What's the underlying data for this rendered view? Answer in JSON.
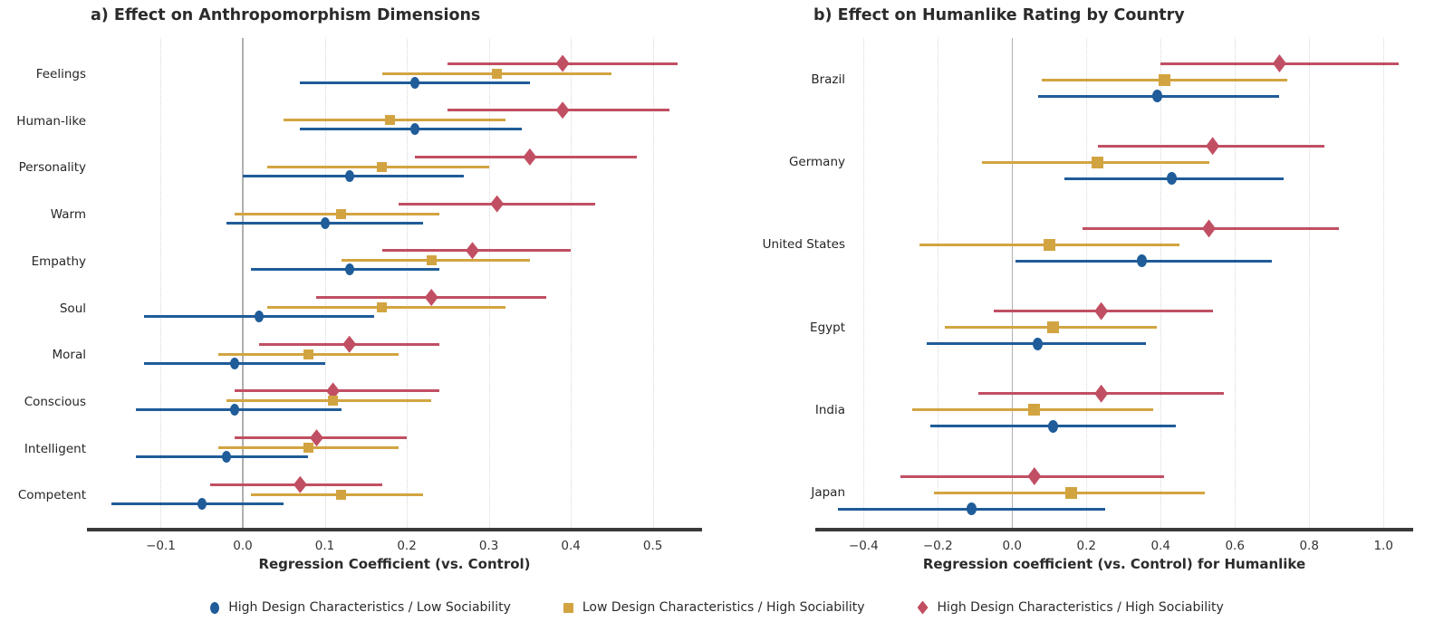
{
  "colors": {
    "blue": "#1f5c99",
    "gold": "#d2a441",
    "red": "#c14f63",
    "grid": "#d8d8d8",
    "zero_line": "#b0b0b0",
    "spine": "#3a3a3a",
    "title_text": "#2b2b2b",
    "tick_text": "#333333"
  },
  "legend": {
    "items": [
      {
        "label": "High Design Characteristics / Low Sociability",
        "marker": "circle",
        "color": "blue"
      },
      {
        "label": "Low Design Characteristics / High Sociability",
        "marker": "square",
        "color": "gold"
      },
      {
        "label": "High Design Characteristics / High Sociability",
        "marker": "diamond",
        "color": "red"
      }
    ]
  },
  "chart_data": [
    {
      "type": "scatter",
      "variant": "dot-whisker-forest-plot",
      "title": "a) Effect on Anthropomorphism Dimensions",
      "xlabel": "Regression Coefficient (vs. Control)",
      "ylabel": "",
      "xlim": [
        -0.19,
        0.56
      ],
      "xticks": [
        -0.1,
        0.0,
        0.1,
        0.2,
        0.3,
        0.4,
        0.5
      ],
      "grid": "vertical-dotted",
      "zero_reference_line": true,
      "legend_position": "bottom",
      "categories": [
        "Feelings",
        "Human-like",
        "Personality",
        "Warm",
        "Empathy",
        "Soul",
        "Moral",
        "Conscious",
        "Intelligent",
        "Competent"
      ],
      "series": [
        {
          "name": "High Design Characteristics / High Sociability",
          "marker": "diamond",
          "color": "red",
          "values": [
            0.39,
            0.39,
            0.35,
            0.31,
            0.28,
            0.23,
            0.13,
            0.11,
            0.09,
            0.07
          ],
          "ci_low": [
            0.25,
            0.25,
            0.21,
            0.19,
            0.17,
            0.09,
            0.02,
            -0.01,
            -0.01,
            -0.04
          ],
          "ci_high": [
            0.53,
            0.52,
            0.48,
            0.43,
            0.4,
            0.37,
            0.24,
            0.24,
            0.2,
            0.17
          ]
        },
        {
          "name": "Low Design Characteristics / High Sociability",
          "marker": "square",
          "color": "gold",
          "values": [
            0.31,
            0.18,
            0.17,
            0.12,
            0.23,
            0.17,
            0.08,
            0.11,
            0.08,
            0.12
          ],
          "ci_low": [
            0.17,
            0.05,
            0.03,
            -0.01,
            0.12,
            0.03,
            -0.03,
            -0.02,
            -0.03,
            0.01
          ],
          "ci_high": [
            0.45,
            0.32,
            0.3,
            0.24,
            0.35,
            0.32,
            0.19,
            0.23,
            0.19,
            0.22
          ]
        },
        {
          "name": "High Design Characteristics / Low Sociability",
          "marker": "circle",
          "color": "blue",
          "values": [
            0.21,
            0.21,
            0.13,
            0.1,
            0.13,
            0.02,
            -0.01,
            -0.01,
            -0.02,
            -0.05
          ],
          "ci_low": [
            0.07,
            0.07,
            0.0,
            -0.02,
            0.01,
            -0.12,
            -0.12,
            -0.13,
            -0.13,
            -0.16
          ],
          "ci_high": [
            0.35,
            0.34,
            0.27,
            0.22,
            0.24,
            0.16,
            0.1,
            0.12,
            0.08,
            0.05
          ]
        }
      ]
    },
    {
      "type": "scatter",
      "variant": "dot-whisker-forest-plot",
      "title": "b) Effect on Humanlike Rating by Country",
      "xlabel": "Regression coefficient (vs. Control) for Humanlike",
      "ylabel": "",
      "xlim": [
        -0.53,
        1.08
      ],
      "xticks": [
        -0.4,
        -0.2,
        0.0,
        0.2,
        0.4,
        0.6,
        0.8,
        1.0
      ],
      "grid": "vertical-dotted",
      "zero_reference_line": true,
      "legend_position": "bottom",
      "categories": [
        "Brazil",
        "Germany",
        "United States",
        "Egypt",
        "India",
        "Japan"
      ],
      "series": [
        {
          "name": "High Design Characteristics / High Sociability",
          "marker": "diamond",
          "color": "red",
          "values": [
            0.72,
            0.54,
            0.53,
            0.24,
            0.24,
            0.06
          ],
          "ci_low": [
            0.4,
            0.23,
            0.19,
            -0.05,
            -0.09,
            -0.3
          ],
          "ci_high": [
            1.04,
            0.84,
            0.88,
            0.54,
            0.57,
            0.41
          ]
        },
        {
          "name": "Low Design Characteristics / High Sociability",
          "marker": "square",
          "color": "gold",
          "values": [
            0.41,
            0.23,
            0.1,
            0.11,
            0.06,
            0.16
          ],
          "ci_low": [
            0.08,
            -0.08,
            -0.25,
            -0.18,
            -0.27,
            -0.21
          ],
          "ci_high": [
            0.74,
            0.53,
            0.45,
            0.39,
            0.38,
            0.52
          ]
        },
        {
          "name": "High Design Characteristics / Low Sociability",
          "marker": "circle",
          "color": "blue",
          "values": [
            0.39,
            0.43,
            0.35,
            0.07,
            0.11,
            -0.11
          ],
          "ci_low": [
            0.07,
            0.14,
            0.01,
            -0.23,
            -0.22,
            -0.47
          ],
          "ci_high": [
            0.72,
            0.73,
            0.7,
            0.36,
            0.44,
            0.25
          ]
        }
      ]
    }
  ]
}
